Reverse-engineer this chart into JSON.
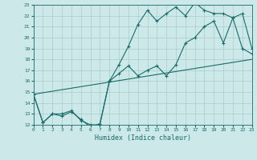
{
  "xlabel": "Humidex (Indice chaleur)",
  "bg_color": "#cce8e8",
  "grid_color": "#aacccc",
  "line_color": "#1a6b6b",
  "xmin": 0,
  "xmax": 23,
  "ymin": 12,
  "ymax": 23,
  "line1_x": [
    0,
    1,
    2,
    3,
    4,
    5,
    6,
    7,
    8,
    9,
    10,
    11,
    12,
    13,
    14,
    15,
    16,
    17,
    18,
    19,
    20,
    21,
    22,
    23
  ],
  "line1_y": [
    14.8,
    12.2,
    13.0,
    12.8,
    13.2,
    12.5,
    11.8,
    12.1,
    16.0,
    16.7,
    17.4,
    16.5,
    17.0,
    17.4,
    16.5,
    17.5,
    19.5,
    20.0,
    21.0,
    21.5,
    19.5,
    21.8,
    22.2,
    19.0
  ],
  "line2_x": [
    0,
    1,
    2,
    3,
    4,
    5,
    6,
    7,
    8,
    9,
    10,
    11,
    12,
    13,
    14,
    15,
    16,
    17,
    18,
    19,
    20,
    21,
    22,
    23
  ],
  "line2_y": [
    14.8,
    12.2,
    13.0,
    13.0,
    13.3,
    12.4,
    12.0,
    12.0,
    16.0,
    17.5,
    19.2,
    21.2,
    22.5,
    21.5,
    22.2,
    22.8,
    22.0,
    23.2,
    22.5,
    22.2,
    22.2,
    21.8,
    19.0,
    18.5
  ],
  "line3_x": [
    0,
    23
  ],
  "line3_y": [
    14.8,
    18.0
  ]
}
